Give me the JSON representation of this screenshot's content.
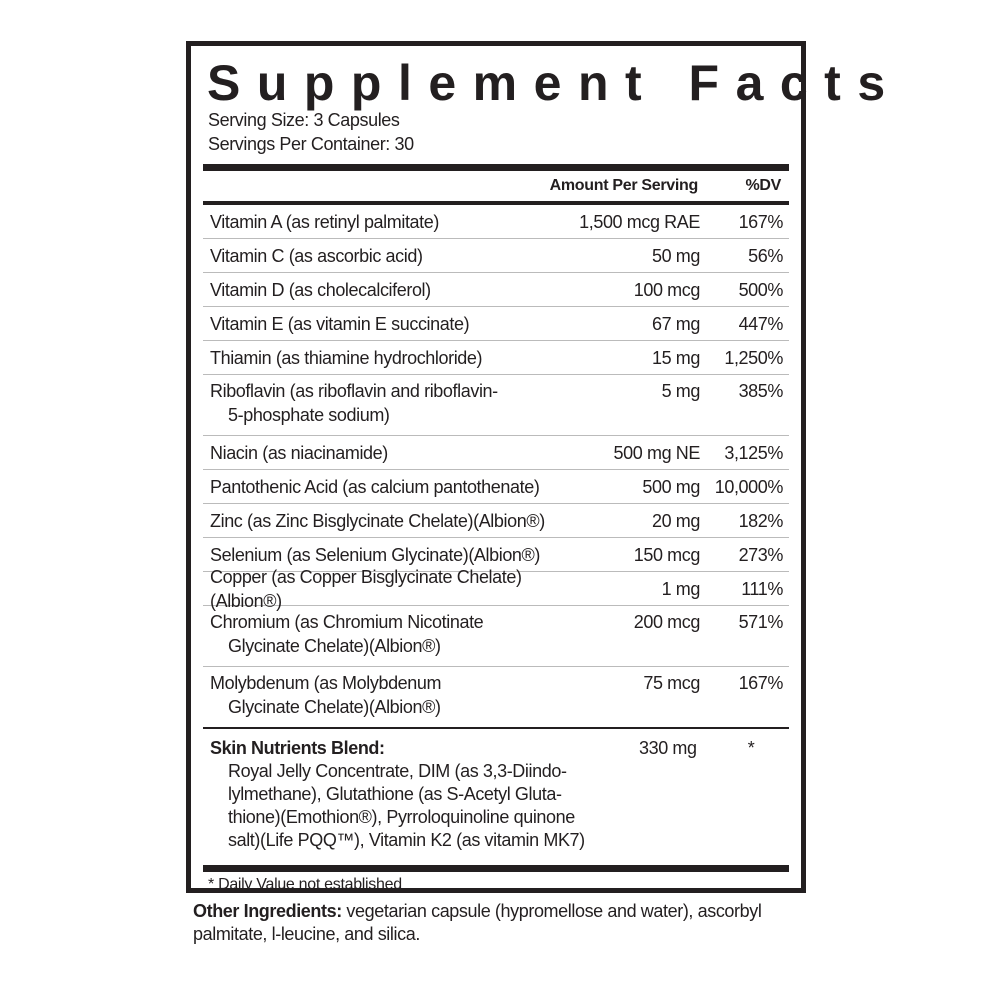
{
  "title": "Supplement Facts",
  "serving_size": "Serving Size: 3 Capsules",
  "servings_per_container": "Servings Per Container: 30",
  "header": {
    "amount": "Amount Per Serving",
    "dv": "%DV"
  },
  "nutrients": [
    {
      "name": "Vitamin A (as retinyl palmitate)",
      "amount": "1,500 mcg RAE",
      "dv": "167%"
    },
    {
      "name": "Vitamin C (as ascorbic acid)",
      "amount": "50 mg",
      "dv": "56%"
    },
    {
      "name": "Vitamin D (as cholecalciferol)",
      "amount": "100 mcg",
      "dv": "500%"
    },
    {
      "name": "Vitamin E (as vitamin E succinate)",
      "amount": "67 mg",
      "dv": "447%"
    },
    {
      "name": "Thiamin (as thiamine hydrochloride)",
      "amount": "15 mg",
      "dv": "1,250%"
    },
    {
      "name": "Riboflavin (as riboflavin and riboflavin-",
      "name2": "5-phosphate sodium)",
      "amount": "5 mg",
      "dv": "385%"
    },
    {
      "name": "Niacin (as niacinamide)",
      "amount": "500 mg NE",
      "dv": "3,125%"
    },
    {
      "name": "Pantothenic Acid (as calcium pantothenate)",
      "amount": "500 mg",
      "dv": "10,000%"
    },
    {
      "name": "Zinc (as Zinc Bisglycinate Chelate)(Albion®)",
      "amount": "20 mg",
      "dv": "182%"
    },
    {
      "name": "Selenium (as Selenium Glycinate)(Albion®)",
      "amount": "150 mcg",
      "dv": "273%"
    },
    {
      "name": "Copper (as Copper Bisglycinate Chelate)(Albion®)",
      "amount": "1 mg",
      "dv": "111%"
    },
    {
      "name": "Chromium (as Chromium Nicotinate",
      "name2": "Glycinate Chelate)(Albion®)",
      "amount": "200 mcg",
      "dv": "571%"
    },
    {
      "name": "Molybdenum (as Molybdenum",
      "name2": "Glycinate Chelate)(Albion®)",
      "amount": "75 mcg",
      "dv": "167%"
    }
  ],
  "blend": {
    "name": "Skin Nutrients Blend:",
    "amount": "330 mg",
    "dv": "*",
    "lines": [
      "Royal Jelly Concentrate, DIM (as 3,3-Diindo-",
      "lylmethane), Glutathione (as S-Acetyl Gluta-",
      "thione)(Emothion®), Pyrroloquinoline quinone",
      "salt)(Life PQQ™), Vitamin K2 (as vitamin MK7)"
    ]
  },
  "footnote": "* Daily Value not established",
  "other_ingredients": {
    "label": "Other Ingredients:",
    "text": " vegetarian capsule (hypromellose and water), ascorbyl palmitate, l-leucine, and silica."
  }
}
